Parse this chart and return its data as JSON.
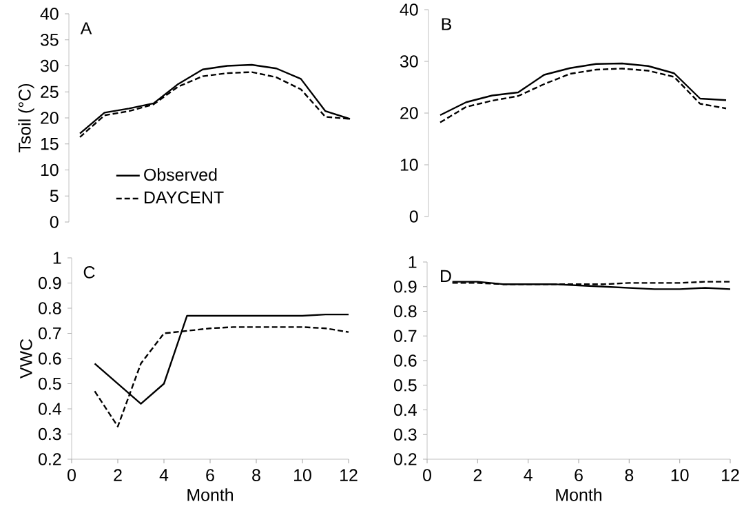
{
  "chart_data": [
    {
      "type": "line",
      "ylabel": "Tsoil (°C)",
      "annotations": [
        "A"
      ],
      "categories": [
        null,
        null,
        null,
        null,
        null,
        null,
        null,
        null,
        null,
        null,
        null,
        null
      ],
      "ylim": [
        0,
        40
      ],
      "yticks": [
        0,
        5,
        10,
        15,
        20,
        25,
        30,
        35,
        40
      ],
      "tick_labels": "y",
      "legend": "bottom left",
      "series": [
        {
          "name": "Observed",
          "color": "#000000",
          "line_style": "solid",
          "values": [
            17,
            21,
            21.8,
            22.8,
            26.5,
            29.3,
            30,
            30.2,
            29.5,
            27.5,
            21.3,
            19.8
          ]
        },
        {
          "name": "DAYCENT",
          "color": "#000000",
          "line_style": "dashed",
          "values": [
            16.3,
            20.5,
            21.3,
            22.6,
            26,
            28,
            28.6,
            28.8,
            27.8,
            25.5,
            20.2,
            19.8
          ]
        }
      ]
    },
    {
      "type": "line",
      "annotations": [
        "B"
      ],
      "categories": [
        null,
        null,
        null,
        null,
        null,
        null,
        null,
        null,
        null,
        null,
        null,
        null
      ],
      "ylim": [
        0,
        40
      ],
      "yticks": [
        0,
        10,
        20,
        30,
        40
      ],
      "tick_labels": "y",
      "series": [
        {
          "color": "#000000",
          "line_style": "solid",
          "values": [
            19.6,
            22.1,
            23.4,
            24.0,
            27.4,
            28.7,
            29.5,
            29.6,
            29.1,
            27.7,
            22.8,
            22.5
          ]
        },
        {
          "color": "#000000",
          "line_style": "dashed",
          "values": [
            18.2,
            21.2,
            22.4,
            23.3,
            25.6,
            27.6,
            28.4,
            28.6,
            28.2,
            27,
            21.8,
            20.9
          ]
        }
      ]
    },
    {
      "type": "line",
      "ylabel": "VWC",
      "xlabel": "Month",
      "annotations": [
        "C"
      ],
      "x": [
        1,
        2,
        3,
        4,
        5,
        6,
        7,
        8,
        9,
        10,
        11,
        12
      ],
      "xlim": [
        0,
        12
      ],
      "xticks": [
        0,
        2,
        4,
        6,
        8,
        10,
        12
      ],
      "ylim": [
        0.2,
        1
      ],
      "yticks": [
        0.2,
        0.3,
        0.4,
        0.5,
        0.6,
        0.7,
        0.8,
        0.9,
        1
      ],
      "series": [
        {
          "color": "#000000",
          "line_style": "solid",
          "values": [
            0.58,
            0.5,
            0.42,
            0.5,
            0.77,
            0.77,
            0.77,
            0.77,
            0.77,
            0.77,
            0.775,
            0.775
          ]
        },
        {
          "color": "#000000",
          "line_style": "dashed",
          "values": [
            0.47,
            0.33,
            0.58,
            0.7,
            0.71,
            0.72,
            0.725,
            0.725,
            0.725,
            0.725,
            0.72,
            0.705
          ]
        }
      ]
    },
    {
      "type": "line",
      "xlabel": "Month",
      "annotations": [
        "D"
      ],
      "x": [
        1,
        2,
        3,
        4,
        5,
        6,
        7,
        8,
        9,
        10,
        11,
        12
      ],
      "xlim": [
        0,
        12
      ],
      "xticks": [
        0,
        2,
        4,
        6,
        8,
        10,
        12
      ],
      "ylim": [
        0.2,
        1
      ],
      "yticks": [
        0.2,
        0.3,
        0.4,
        0.5,
        0.6,
        0.7,
        0.8,
        0.9,
        1
      ],
      "series": [
        {
          "color": "#000000",
          "line_style": "solid",
          "values": [
            0.92,
            0.92,
            0.91,
            0.91,
            0.91,
            0.905,
            0.9,
            0.895,
            0.89,
            0.89,
            0.895,
            0.89
          ]
        },
        {
          "color": "#000000",
          "line_style": "dashed",
          "values": [
            0.915,
            0.915,
            0.91,
            0.91,
            0.91,
            0.91,
            0.91,
            0.915,
            0.915,
            0.915,
            0.92,
            0.92
          ]
        }
      ]
    }
  ]
}
